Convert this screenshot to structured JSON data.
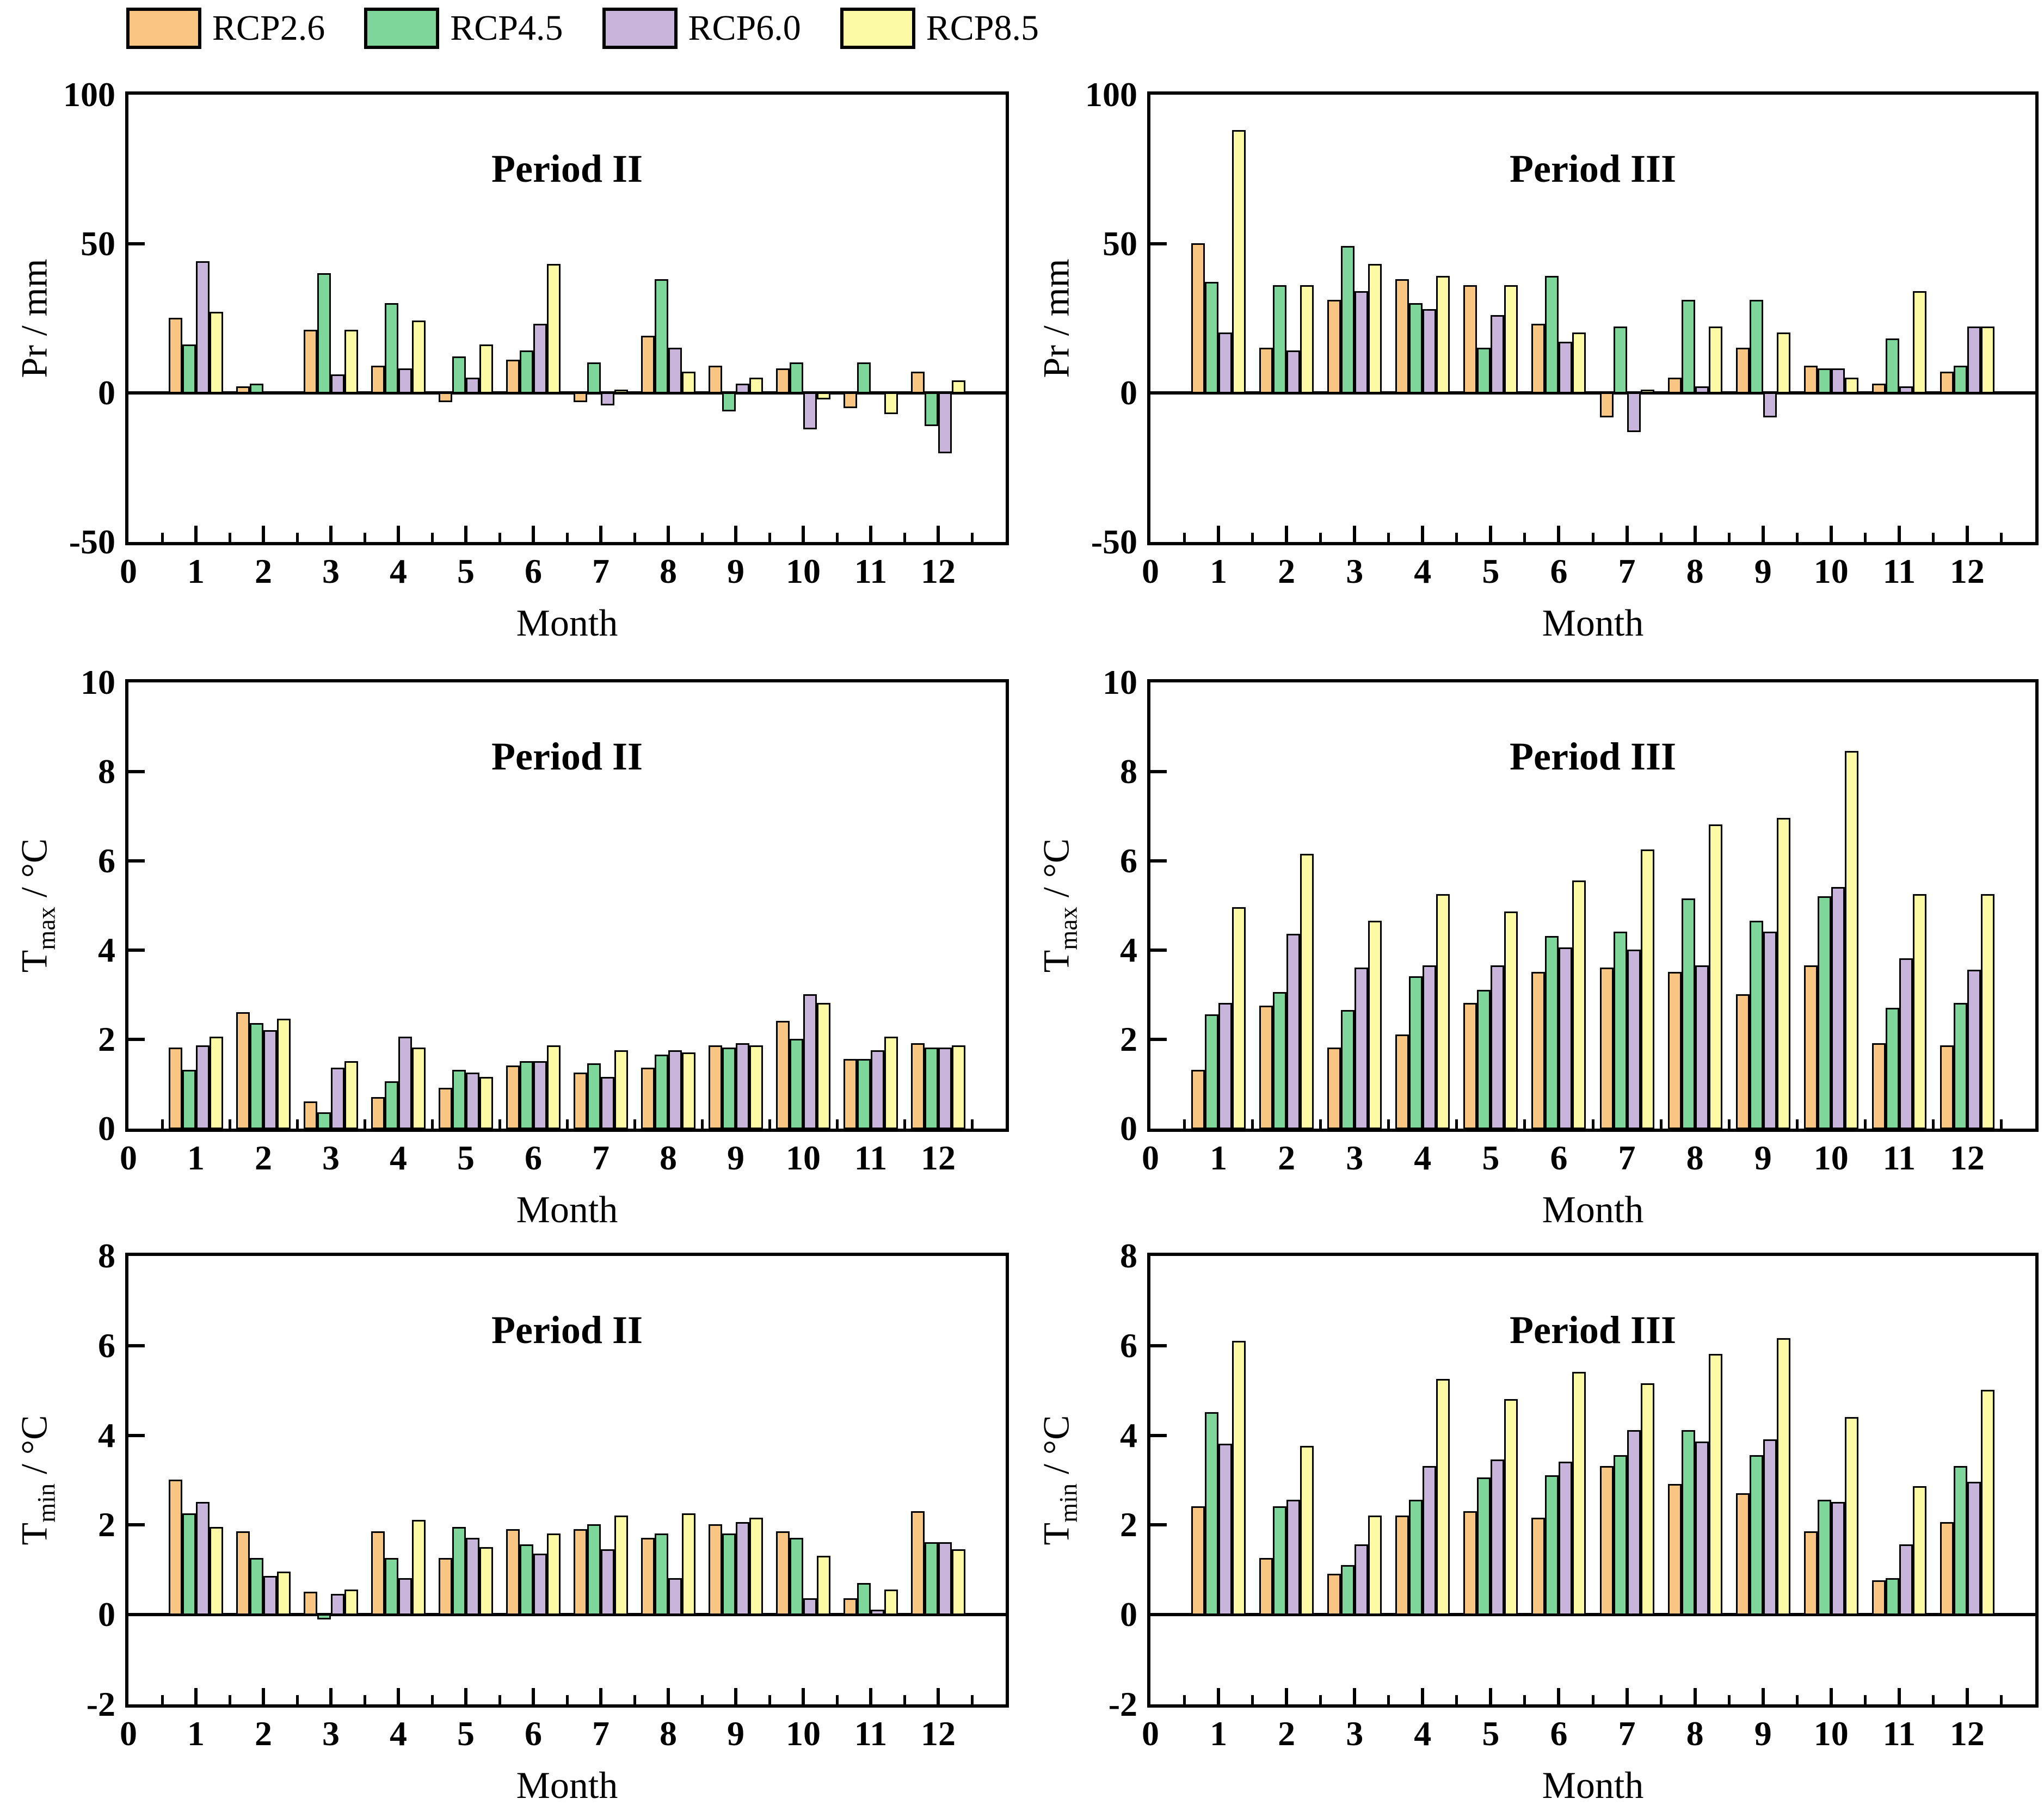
{
  "legend": {
    "items": [
      {
        "label": "RCP2.6",
        "color": "#F9C583"
      },
      {
        "label": "RCP4.5",
        "color": "#7FD69B"
      },
      {
        "label": "RCP6.0",
        "color": "#C9B4DB"
      },
      {
        "label": "RCP8.5",
        "color": "#FCFAA4"
      }
    ]
  },
  "colors": {
    "RCP2.6": "#F9C583",
    "RCP4.5": "#7FD69B",
    "RCP6.0": "#C9B4DB",
    "RCP8.5": "#FCFAA4"
  },
  "chart_data": [
    {
      "type": "bar",
      "title": "Period II",
      "xlabel": "Month",
      "ylabel": {
        "pre": "Pr / mm",
        "sub": "",
        "post": ""
      },
      "ylim": [
        -50,
        100
      ],
      "yticks": [
        100,
        50,
        0,
        -50
      ],
      "categories": [
        1,
        2,
        3,
        4,
        5,
        6,
        7,
        8,
        9,
        10,
        11,
        12
      ],
      "series": [
        {
          "name": "RCP2.6",
          "values": [
            25,
            2,
            21,
            9,
            -3,
            11,
            -3,
            19,
            9,
            8,
            -5,
            7
          ]
        },
        {
          "name": "RCP4.5",
          "values": [
            16,
            3,
            40,
            30,
            12,
            14,
            10,
            38,
            -6,
            10,
            10,
            -11
          ]
        },
        {
          "name": "RCP6.0",
          "values": [
            44,
            0,
            6,
            8,
            5,
            23,
            -4,
            15,
            3,
            -12,
            0,
            -20
          ]
        },
        {
          "name": "RCP8.5",
          "values": [
            27,
            0,
            21,
            24,
            16,
            43,
            1,
            7,
            5,
            -2,
            -7,
            4
          ]
        }
      ]
    },
    {
      "type": "bar",
      "title": "Period III",
      "xlabel": "Month",
      "ylabel": {
        "pre": "Pr / mm",
        "sub": "",
        "post": ""
      },
      "ylim": [
        -50,
        100
      ],
      "yticks": [
        100,
        50,
        0,
        -50
      ],
      "categories": [
        1,
        2,
        3,
        4,
        5,
        6,
        7,
        8,
        9,
        10,
        11,
        12
      ],
      "series": [
        {
          "name": "RCP2.6",
          "values": [
            50,
            15,
            31,
            38,
            36,
            23,
            -8,
            5,
            15,
            9,
            3,
            7
          ]
        },
        {
          "name": "RCP4.5",
          "values": [
            37,
            36,
            49,
            30,
            15,
            39,
            22,
            31,
            31,
            8,
            18,
            9
          ]
        },
        {
          "name": "RCP6.0",
          "values": [
            20,
            14,
            34,
            28,
            26,
            17,
            -13,
            2,
            -8,
            8,
            2,
            22
          ]
        },
        {
          "name": "RCP8.5",
          "values": [
            88,
            36,
            43,
            39,
            36,
            20,
            1,
            22,
            20,
            5,
            34,
            22
          ]
        }
      ]
    },
    {
      "type": "bar",
      "title": "Period II",
      "xlabel": "Month",
      "ylabel": {
        "pre": "T",
        "sub": "max",
        "post": " / °C"
      },
      "ylim": [
        0,
        10
      ],
      "yticks": [
        10,
        8,
        6,
        4,
        2,
        0
      ],
      "categories": [
        1,
        2,
        3,
        4,
        5,
        6,
        7,
        8,
        9,
        10,
        11,
        12
      ],
      "series": [
        {
          "name": "RCP2.6",
          "values": [
            1.8,
            2.6,
            0.6,
            0.7,
            0.9,
            1.4,
            1.25,
            1.35,
            1.85,
            2.4,
            1.55,
            1.9
          ]
        },
        {
          "name": "RCP4.5",
          "values": [
            1.3,
            2.35,
            0.35,
            1.05,
            1.3,
            1.5,
            1.45,
            1.65,
            1.8,
            2.0,
            1.55,
            1.8
          ]
        },
        {
          "name": "RCP6.0",
          "values": [
            1.85,
            2.2,
            1.35,
            2.05,
            1.25,
            1.5,
            1.15,
            1.75,
            1.9,
            3.0,
            1.75,
            1.8
          ]
        },
        {
          "name": "RCP8.5",
          "values": [
            2.05,
            2.45,
            1.5,
            1.8,
            1.15,
            1.85,
            1.75,
            1.7,
            1.85,
            2.8,
            2.05,
            1.85
          ]
        }
      ]
    },
    {
      "type": "bar",
      "title": "Period III",
      "xlabel": "Month",
      "ylabel": {
        "pre": "T",
        "sub": "max",
        "post": " / °C"
      },
      "ylim": [
        0,
        10
      ],
      "yticks": [
        10,
        8,
        6,
        4,
        2,
        0
      ],
      "categories": [
        1,
        2,
        3,
        4,
        5,
        6,
        7,
        8,
        9,
        10,
        11,
        12
      ],
      "series": [
        {
          "name": "RCP2.6",
          "values": [
            1.3,
            2.75,
            1.8,
            2.1,
            2.8,
            3.5,
            3.6,
            3.5,
            3.0,
            3.65,
            1.9,
            1.85
          ]
        },
        {
          "name": "RCP4.5",
          "values": [
            2.55,
            3.05,
            2.65,
            3.4,
            3.1,
            4.3,
            4.4,
            5.15,
            4.65,
            5.2,
            2.7,
            2.8
          ]
        },
        {
          "name": "RCP6.0",
          "values": [
            2.8,
            4.35,
            3.6,
            3.65,
            3.65,
            4.05,
            4.0,
            3.65,
            4.4,
            5.4,
            3.8,
            3.55
          ]
        },
        {
          "name": "RCP8.5",
          "values": [
            4.95,
            6.15,
            4.65,
            5.25,
            4.85,
            5.55,
            6.25,
            6.8,
            6.95,
            8.45,
            5.25,
            5.25
          ]
        }
      ]
    },
    {
      "type": "bar",
      "title": "Period II",
      "xlabel": "Month",
      "ylabel": {
        "pre": "T",
        "sub": "min",
        "post": " / °C"
      },
      "ylim": [
        -2,
        8
      ],
      "yticks": [
        8,
        6,
        4,
        2,
        0,
        -2
      ],
      "categories": [
        1,
        2,
        3,
        4,
        5,
        6,
        7,
        8,
        9,
        10,
        11,
        12
      ],
      "series": [
        {
          "name": "RCP2.6",
          "values": [
            3.0,
            1.85,
            0.5,
            1.85,
            1.25,
            1.9,
            1.9,
            1.7,
            2.0,
            1.85,
            0.35,
            2.3
          ]
        },
        {
          "name": "RCP4.5",
          "values": [
            2.25,
            1.25,
            -0.1,
            1.25,
            1.95,
            1.55,
            2.0,
            1.8,
            1.8,
            1.7,
            0.7,
            1.6
          ]
        },
        {
          "name": "RCP6.0",
          "values": [
            2.5,
            0.85,
            0.45,
            0.8,
            1.7,
            1.35,
            1.45,
            0.8,
            2.05,
            0.35,
            0.1,
            1.6
          ]
        },
        {
          "name": "RCP8.5",
          "values": [
            1.95,
            0.95,
            0.55,
            2.1,
            1.5,
            1.8,
            2.2,
            2.25,
            2.15,
            1.3,
            0.55,
            1.45
          ]
        }
      ]
    },
    {
      "type": "bar",
      "title": "Period III",
      "xlabel": "Month",
      "ylabel": {
        "pre": "T",
        "sub": "min",
        "post": " / °C"
      },
      "ylim": [
        -2,
        8
      ],
      "yticks": [
        8,
        6,
        4,
        2,
        0,
        -2
      ],
      "categories": [
        1,
        2,
        3,
        4,
        5,
        6,
        7,
        8,
        9,
        10,
        11,
        12
      ],
      "series": [
        {
          "name": "RCP2.6",
          "values": [
            2.4,
            1.25,
            0.9,
            2.2,
            2.3,
            2.15,
            3.3,
            2.9,
            2.7,
            1.85,
            0.75,
            2.05
          ]
        },
        {
          "name": "RCP4.5",
          "values": [
            4.5,
            2.4,
            1.1,
            2.55,
            3.05,
            3.1,
            3.55,
            4.1,
            3.55,
            2.55,
            0.8,
            3.3
          ]
        },
        {
          "name": "RCP6.0",
          "values": [
            3.8,
            2.55,
            1.55,
            3.3,
            3.45,
            3.4,
            4.1,
            3.85,
            3.9,
            2.5,
            1.55,
            2.95
          ]
        },
        {
          "name": "RCP8.5",
          "values": [
            6.1,
            3.75,
            2.2,
            5.25,
            4.8,
            5.4,
            5.15,
            5.8,
            6.15,
            4.4,
            2.85,
            5.0
          ]
        }
      ]
    }
  ]
}
